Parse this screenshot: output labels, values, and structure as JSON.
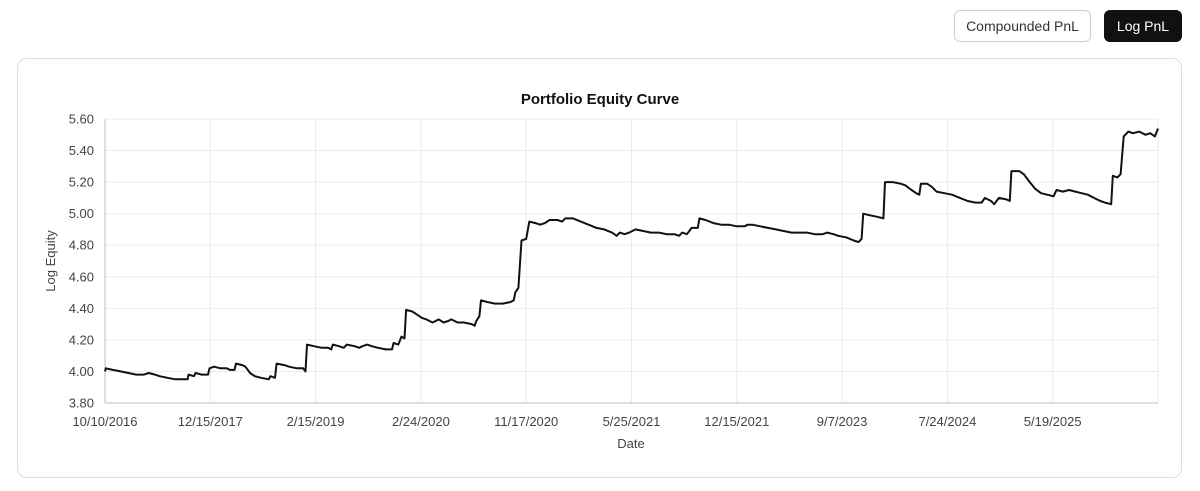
{
  "toolbar": {
    "compounded_label": "Compounded PnL",
    "log_label": "Log PnL",
    "active": "Log PnL"
  },
  "colors": {
    "line": "#111111",
    "grid": "#ebebeb",
    "active_bg": "#111111"
  },
  "chart_data": {
    "type": "line",
    "title": "Portfolio Equity Curve",
    "xlabel": "Date",
    "ylabel": "Log Equity",
    "ylim": [
      3.8,
      5.6
    ],
    "yticks": [
      "3.80",
      "4.00",
      "4.20",
      "4.40",
      "4.60",
      "4.80",
      "5.00",
      "5.20",
      "5.40",
      "5.60"
    ],
    "xticks": [
      "10/10/2016",
      "12/15/2017",
      "2/15/2019",
      "2/24/2020",
      "11/17/2020",
      "5/25/2021",
      "12/15/2021",
      "9/7/2023",
      "7/24/2024",
      "5/19/2025"
    ],
    "grid": true,
    "legend": "none",
    "series": [
      {
        "points": [
          [
            0.0,
            4.0
          ],
          [
            0.05,
            4.02
          ],
          [
            0.5,
            4.01
          ],
          [
            1.0,
            4.0
          ],
          [
            1.5,
            3.99
          ],
          [
            2.0,
            3.98
          ],
          [
            2.5,
            3.98
          ],
          [
            2.8,
            3.99
          ],
          [
            3.2,
            3.98
          ],
          [
            3.5,
            3.97
          ],
          [
            4.0,
            3.96
          ],
          [
            4.5,
            3.95
          ],
          [
            5.0,
            3.95
          ],
          [
            5.3,
            3.95
          ],
          [
            5.35,
            3.98
          ],
          [
            5.7,
            3.97
          ],
          [
            5.8,
            3.99
          ],
          [
            6.2,
            3.98
          ],
          [
            6.6,
            3.98
          ],
          [
            6.7,
            4.02
          ],
          [
            7.0,
            4.03
          ],
          [
            7.4,
            4.02
          ],
          [
            7.8,
            4.02
          ],
          [
            8.0,
            4.01
          ],
          [
            8.3,
            4.01
          ],
          [
            8.4,
            4.05
          ],
          [
            8.8,
            4.04
          ],
          [
            9.0,
            4.03
          ],
          [
            9.3,
            3.99
          ],
          [
            9.6,
            3.97
          ],
          [
            10.0,
            3.96
          ],
          [
            10.5,
            3.95
          ],
          [
            10.6,
            3.97
          ],
          [
            10.9,
            3.96
          ],
          [
            11.0,
            4.05
          ],
          [
            11.5,
            4.04
          ],
          [
            11.8,
            4.03
          ],
          [
            12.3,
            4.02
          ],
          [
            12.7,
            4.02
          ],
          [
            12.85,
            4.0
          ],
          [
            12.95,
            4.17
          ],
          [
            13.4,
            4.16
          ],
          [
            13.9,
            4.15
          ],
          [
            14.3,
            4.15
          ],
          [
            14.5,
            4.14
          ],
          [
            14.6,
            4.17
          ],
          [
            15.0,
            4.16
          ],
          [
            15.3,
            4.15
          ],
          [
            15.5,
            4.17
          ],
          [
            16.0,
            4.16
          ],
          [
            16.3,
            4.15
          ],
          [
            16.5,
            4.16
          ],
          [
            16.8,
            4.17
          ],
          [
            17.1,
            4.16
          ],
          [
            17.5,
            4.15
          ],
          [
            18.0,
            4.14
          ],
          [
            18.4,
            4.14
          ],
          [
            18.5,
            4.18
          ],
          [
            18.8,
            4.17
          ],
          [
            19.0,
            4.22
          ],
          [
            19.2,
            4.21
          ],
          [
            19.3,
            4.39
          ],
          [
            19.7,
            4.38
          ],
          [
            20.0,
            4.36
          ],
          [
            20.3,
            4.34
          ],
          [
            20.6,
            4.33
          ],
          [
            20.8,
            4.32
          ],
          [
            21.0,
            4.31
          ],
          [
            21.4,
            4.33
          ],
          [
            21.7,
            4.31
          ],
          [
            22.0,
            4.32
          ],
          [
            22.2,
            4.33
          ],
          [
            22.6,
            4.31
          ],
          [
            23.0,
            4.31
          ],
          [
            23.5,
            4.3
          ],
          [
            23.7,
            4.29
          ],
          [
            23.8,
            4.32
          ],
          [
            24.0,
            4.35
          ],
          [
            24.1,
            4.45
          ],
          [
            24.5,
            4.44
          ],
          [
            25.0,
            4.43
          ],
          [
            25.5,
            4.43
          ],
          [
            26.0,
            4.44
          ],
          [
            26.2,
            4.45
          ],
          [
            26.3,
            4.5
          ],
          [
            26.5,
            4.53
          ],
          [
            26.7,
            4.83
          ],
          [
            27.0,
            4.84
          ],
          [
            27.2,
            4.95
          ],
          [
            27.6,
            4.94
          ],
          [
            27.9,
            4.93
          ],
          [
            28.2,
            4.94
          ],
          [
            28.5,
            4.96
          ],
          [
            29.0,
            4.96
          ],
          [
            29.3,
            4.95
          ],
          [
            29.5,
            4.97
          ],
          [
            30.0,
            4.97
          ],
          [
            30.5,
            4.95
          ],
          [
            31.0,
            4.93
          ],
          [
            31.5,
            4.91
          ],
          [
            32.0,
            4.9
          ],
          [
            32.5,
            4.88
          ],
          [
            32.8,
            4.86
          ],
          [
            33.0,
            4.88
          ],
          [
            33.3,
            4.87
          ],
          [
            33.6,
            4.88
          ],
          [
            34.0,
            4.9
          ],
          [
            34.5,
            4.89
          ],
          [
            35.0,
            4.88
          ],
          [
            35.5,
            4.88
          ],
          [
            36.0,
            4.87
          ],
          [
            36.5,
            4.87
          ],
          [
            36.8,
            4.86
          ],
          [
            37.0,
            4.88
          ],
          [
            37.3,
            4.87
          ],
          [
            37.6,
            4.91
          ],
          [
            38.0,
            4.91
          ],
          [
            38.1,
            4.97
          ],
          [
            38.5,
            4.96
          ],
          [
            39.0,
            4.94
          ],
          [
            39.5,
            4.93
          ],
          [
            40.0,
            4.93
          ],
          [
            40.5,
            4.92
          ],
          [
            41.0,
            4.92
          ],
          [
            41.2,
            4.93
          ],
          [
            41.5,
            4.93
          ],
          [
            42.0,
            4.92
          ],
          [
            42.5,
            4.91
          ],
          [
            43.0,
            4.9
          ],
          [
            43.5,
            4.89
          ],
          [
            44.0,
            4.88
          ],
          [
            44.5,
            4.88
          ],
          [
            45.0,
            4.88
          ],
          [
            45.5,
            4.87
          ],
          [
            46.0,
            4.87
          ],
          [
            46.3,
            4.88
          ],
          [
            46.7,
            4.87
          ],
          [
            47.0,
            4.86
          ],
          [
            47.5,
            4.85
          ],
          [
            48.0,
            4.83
          ],
          [
            48.3,
            4.82
          ],
          [
            48.5,
            4.84
          ],
          [
            48.6,
            5.0
          ],
          [
            49.0,
            4.99
          ],
          [
            49.5,
            4.98
          ],
          [
            49.9,
            4.97
          ],
          [
            50.0,
            5.2
          ],
          [
            50.5,
            5.2
          ],
          [
            51.0,
            5.19
          ],
          [
            51.3,
            5.18
          ],
          [
            51.7,
            5.15
          ],
          [
            52.0,
            5.13
          ],
          [
            52.2,
            5.12
          ],
          [
            52.3,
            5.19
          ],
          [
            52.7,
            5.19
          ],
          [
            53.0,
            5.17
          ],
          [
            53.3,
            5.14
          ],
          [
            53.8,
            5.13
          ],
          [
            54.3,
            5.12
          ],
          [
            54.8,
            5.1
          ],
          [
            55.3,
            5.08
          ],
          [
            55.8,
            5.07
          ],
          [
            56.2,
            5.07
          ],
          [
            56.4,
            5.1
          ],
          [
            56.8,
            5.08
          ],
          [
            57.0,
            5.06
          ],
          [
            57.3,
            5.1
          ],
          [
            57.8,
            5.09
          ],
          [
            58.0,
            5.08
          ],
          [
            58.1,
            5.27
          ],
          [
            58.6,
            5.27
          ],
          [
            58.9,
            5.25
          ],
          [
            59.2,
            5.21
          ],
          [
            59.6,
            5.16
          ],
          [
            60.0,
            5.13
          ],
          [
            60.4,
            5.12
          ],
          [
            60.8,
            5.11
          ],
          [
            61.0,
            5.15
          ],
          [
            61.4,
            5.14
          ],
          [
            61.8,
            5.15
          ],
          [
            62.2,
            5.14
          ],
          [
            62.6,
            5.13
          ],
          [
            63.0,
            5.12
          ],
          [
            63.4,
            5.1
          ],
          [
            63.8,
            5.08
          ],
          [
            64.1,
            5.07
          ],
          [
            64.5,
            5.06
          ],
          [
            64.6,
            5.24
          ],
          [
            64.9,
            5.23
          ],
          [
            65.1,
            5.25
          ],
          [
            65.3,
            5.49
          ],
          [
            65.6,
            5.52
          ],
          [
            65.9,
            5.51
          ],
          [
            66.3,
            5.52
          ],
          [
            66.7,
            5.5
          ],
          [
            67.0,
            5.51
          ],
          [
            67.3,
            5.49
          ],
          [
            67.5,
            5.54
          ]
        ]
      }
    ]
  }
}
